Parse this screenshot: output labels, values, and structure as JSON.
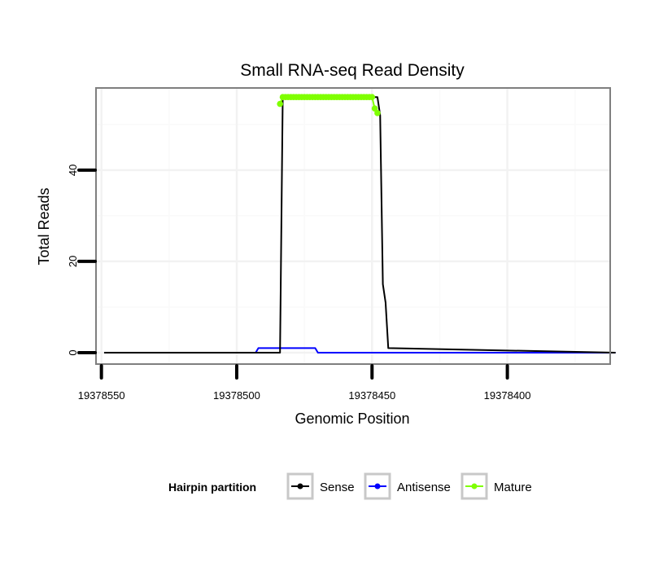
{
  "chart_data": {
    "type": "line",
    "title": "Small RNA-seq Read Density",
    "xlabel": "Genomic Position",
    "ylabel": "Total Reads",
    "xlim": [
      19378552,
      19378362
    ],
    "x_reversed": true,
    "ylim": [
      -2.5,
      58
    ],
    "x_ticks": [
      19378550,
      19378500,
      19378450,
      19378400
    ],
    "x_tick_labels": [
      "19378550",
      "19378500",
      "19378450",
      "19378400"
    ],
    "y_ticks": [
      0,
      20,
      40
    ],
    "y_tick_labels": [
      "0",
      "20",
      "40"
    ],
    "grid": true,
    "legend": {
      "position": "bottom",
      "title": "Hairpin partition",
      "entries": [
        "Sense",
        "Antisense",
        "Mature"
      ]
    },
    "series": [
      {
        "name": "Sense",
        "color": "#000000",
        "kind": "line",
        "x": [
          19378549,
          19378484,
          19378483,
          19378450,
          19378448,
          19378447,
          19378446,
          19378445,
          19378444,
          19378360
        ],
        "y": [
          0,
          0,
          56,
          56,
          56,
          52,
          15,
          11,
          1,
          0
        ]
      },
      {
        "name": "Antisense",
        "color": "#0000ff",
        "kind": "line",
        "x": [
          19378549,
          19378493,
          19378492,
          19378471,
          19378470,
          19378360
        ],
        "y": [
          0,
          0,
          1,
          1,
          0,
          0
        ]
      },
      {
        "name": "Mature",
        "color": "#7fff00",
        "kind": "points",
        "x": [
          19378484,
          19378483,
          19378482,
          19378481,
          19378480,
          19378479,
          19378478,
          19378477,
          19378476,
          19378475,
          19378474,
          19378473,
          19378472,
          19378471,
          19378470,
          19378469,
          19378468,
          19378467,
          19378466,
          19378465,
          19378464,
          19378463,
          19378462,
          19378461,
          19378460,
          19378459,
          19378458,
          19378457,
          19378456,
          19378455,
          19378454,
          19378453,
          19378452,
          19378451,
          19378450,
          19378449,
          19378448
        ],
        "y": [
          54.5,
          56,
          56,
          56,
          56,
          56,
          56,
          56,
          56,
          56,
          56,
          56,
          56,
          56,
          56,
          56,
          56,
          56,
          56,
          56,
          56,
          56,
          56,
          56,
          56,
          56,
          56,
          56,
          56,
          56,
          56,
          56,
          56,
          56,
          56,
          53.5,
          52.5
        ]
      }
    ]
  }
}
